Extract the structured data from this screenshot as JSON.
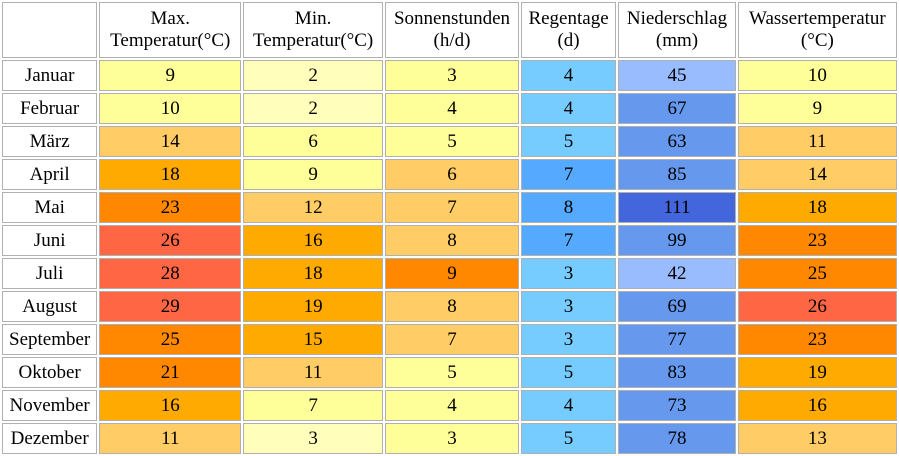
{
  "headers": [
    {
      "line1": "Max.",
      "line2": "Temperatur(°C)"
    },
    {
      "line1": "Min.",
      "line2": "Temperatur(°C)"
    },
    {
      "line1": "Sonnenstunden",
      "line2": "(h/d)"
    },
    {
      "line1": "Regentage",
      "line2": "(d)"
    },
    {
      "line1": "Niederschlag",
      "line2": "(mm)"
    },
    {
      "line1": "Wassertemperatur",
      "line2": "(°C)"
    }
  ],
  "rows": [
    {
      "month": "Januar",
      "max": "9",
      "min": "2",
      "sun": "3",
      "rain_days": "4",
      "precip": "45",
      "water": "10"
    },
    {
      "month": "Februar",
      "max": "10",
      "min": "2",
      "sun": "4",
      "rain_days": "4",
      "precip": "67",
      "water": "9"
    },
    {
      "month": "März",
      "max": "14",
      "min": "6",
      "sun": "5",
      "rain_days": "5",
      "precip": "63",
      "water": "11"
    },
    {
      "month": "April",
      "max": "18",
      "min": "9",
      "sun": "6",
      "rain_days": "7",
      "precip": "85",
      "water": "14"
    },
    {
      "month": "Mai",
      "max": "23",
      "min": "12",
      "sun": "7",
      "rain_days": "8",
      "precip": "111",
      "water": "18"
    },
    {
      "month": "Juni",
      "max": "26",
      "min": "16",
      "sun": "8",
      "rain_days": "7",
      "precip": "99",
      "water": "23"
    },
    {
      "month": "Juli",
      "max": "28",
      "min": "18",
      "sun": "9",
      "rain_days": "3",
      "precip": "42",
      "water": "25"
    },
    {
      "month": "August",
      "max": "29",
      "min": "19",
      "sun": "8",
      "rain_days": "3",
      "precip": "69",
      "water": "26"
    },
    {
      "month": "September",
      "max": "25",
      "min": "15",
      "sun": "7",
      "rain_days": "3",
      "precip": "77",
      "water": "23"
    },
    {
      "month": "Oktober",
      "max": "21",
      "min": "11",
      "sun": "5",
      "rain_days": "5",
      "precip": "83",
      "water": "19"
    },
    {
      "month": "November",
      "max": "16",
      "min": "7",
      "sun": "4",
      "rain_days": "4",
      "precip": "73",
      "water": "16"
    },
    {
      "month": "Dezember",
      "max": "11",
      "min": "3",
      "sun": "3",
      "rain_days": "5",
      "precip": "78",
      "water": "13"
    }
  ],
  "colors": {
    "max": [
      "#ffff99",
      "#ffff99",
      "#ffcc66",
      "#ffaa00",
      "#ff8800",
      "#ff6644",
      "#ff6644",
      "#ff6644",
      "#ff8800",
      "#ff8800",
      "#ffaa00",
      "#ffcc66"
    ],
    "min": [
      "#ffffbb",
      "#ffffbb",
      "#ffff99",
      "#ffff99",
      "#ffcc66",
      "#ffaa00",
      "#ffaa00",
      "#ffaa00",
      "#ffaa00",
      "#ffcc66",
      "#ffff99",
      "#ffffbb"
    ],
    "sun": [
      "#ffff99",
      "#ffff99",
      "#ffff99",
      "#ffcc66",
      "#ffcc66",
      "#ffcc66",
      "#ff8800",
      "#ffcc66",
      "#ffcc66",
      "#ffff99",
      "#ffff99",
      "#ffff99"
    ],
    "rain_days": [
      "#77ccff",
      "#77ccff",
      "#77ccff",
      "#55aaff",
      "#55aaff",
      "#55aaff",
      "#77ccff",
      "#77ccff",
      "#77ccff",
      "#77ccff",
      "#77ccff",
      "#77ccff"
    ],
    "precip": [
      "#99bbff",
      "#6699ee",
      "#6699ee",
      "#6699ee",
      "#4466dd",
      "#6699ee",
      "#99bbff",
      "#6699ee",
      "#6699ee",
      "#6699ee",
      "#6699ee",
      "#6699ee"
    ],
    "water": [
      "#ffff99",
      "#ffff99",
      "#ffcc66",
      "#ffcc66",
      "#ffaa00",
      "#ff8800",
      "#ff8800",
      "#ff6644",
      "#ff8800",
      "#ffaa00",
      "#ffaa00",
      "#ffcc66"
    ]
  }
}
